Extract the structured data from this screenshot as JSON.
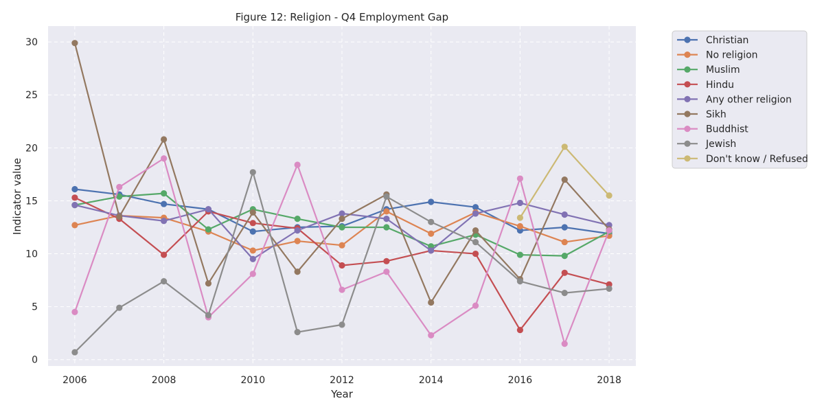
{
  "chart_data": {
    "type": "line",
    "title": "Figure 12: Religion - Q4 Employment Gap",
    "xlabel": "Year",
    "ylabel": "Indicator value",
    "x": [
      2006,
      2007,
      2008,
      2009,
      2010,
      2011,
      2012,
      2013,
      2014,
      2015,
      2016,
      2017,
      2018
    ],
    "xlim": [
      2005.4,
      2018.6
    ],
    "ylim": [
      -0.6,
      31.5
    ],
    "xticks": [
      2006,
      2008,
      2010,
      2012,
      2014,
      2016,
      2018
    ],
    "yticks": [
      0,
      5,
      10,
      15,
      20,
      25,
      30
    ],
    "grid": true,
    "legend_position": "outside-right-top",
    "series": [
      {
        "name": "Christian",
        "color": "#4c72b0",
        "values": [
          16.1,
          15.6,
          14.7,
          14.2,
          12.1,
          12.5,
          12.6,
          14.2,
          14.9,
          14.4,
          12.2,
          12.5,
          11.9
        ]
      },
      {
        "name": "No religion",
        "color": "#dd8452",
        "values": [
          12.7,
          13.6,
          13.4,
          12.1,
          10.3,
          11.2,
          10.8,
          14.0,
          11.9,
          13.9,
          12.6,
          11.1,
          11.7
        ]
      },
      {
        "name": "Muslim",
        "color": "#55a868",
        "values": [
          14.6,
          15.4,
          15.7,
          12.3,
          14.2,
          13.3,
          12.5,
          12.5,
          10.7,
          11.8,
          9.9,
          9.8,
          12.1
        ]
      },
      {
        "name": "Hindu",
        "color": "#c44e52",
        "values": [
          15.3,
          13.3,
          9.9,
          14.0,
          12.9,
          12.4,
          8.9,
          9.3,
          10.3,
          10.0,
          2.8,
          8.2,
          7.1
        ]
      },
      {
        "name": "Any other religion",
        "color": "#8172b3",
        "values": [
          14.6,
          13.6,
          13.1,
          14.2,
          9.5,
          12.2,
          13.8,
          13.3,
          10.3,
          13.8,
          14.8,
          13.7,
          12.7
        ]
      },
      {
        "name": "Sikh",
        "color": "#937860",
        "values": [
          29.9,
          13.5,
          20.8,
          7.2,
          13.9,
          8.3,
          13.3,
          15.6,
          5.4,
          12.2,
          7.6,
          17.0,
          12.3
        ]
      },
      {
        "name": "Buddhist",
        "color": "#da8bc3",
        "values": [
          4.5,
          16.3,
          19.0,
          4.0,
          8.1,
          18.4,
          6.6,
          8.3,
          2.3,
          5.1,
          17.1,
          1.5,
          12.2
        ]
      },
      {
        "name": "Jewish",
        "color": "#8c8c8c",
        "values": [
          0.7,
          4.9,
          7.4,
          4.2,
          17.7,
          2.6,
          3.3,
          15.4,
          13.0,
          11.1,
          7.4,
          6.3,
          6.7
        ]
      },
      {
        "name": "Don't know / Refused",
        "color": "#ccb974",
        "values": [
          null,
          null,
          null,
          null,
          null,
          null,
          null,
          null,
          null,
          null,
          13.4,
          20.1,
          15.5
        ]
      }
    ]
  }
}
